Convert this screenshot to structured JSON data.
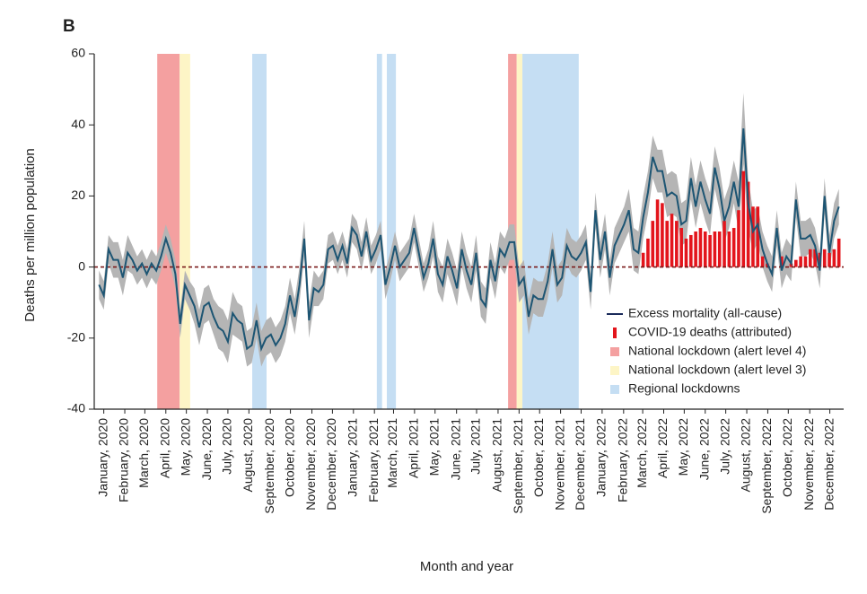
{
  "chart_data": {
    "type": "line",
    "panel_label": "B",
    "xlabel": "Month and year",
    "ylabel": "Deaths per million population",
    "xlim": [
      0,
      157
    ],
    "ylim": [
      -40,
      60
    ],
    "yticks": [
      -40,
      -20,
      0,
      20,
      40,
      60
    ],
    "xticks": [
      {
        "value": 2,
        "label": "January, 2020"
      },
      {
        "value": 6.4,
        "label": "February, 2020"
      },
      {
        "value": 10.6,
        "label": "March, 2020"
      },
      {
        "value": 15,
        "label": "April, 2020"
      },
      {
        "value": 19.3,
        "label": "May, 2020"
      },
      {
        "value": 23.7,
        "label": "June, 2020"
      },
      {
        "value": 28,
        "label": "July, 2020"
      },
      {
        "value": 32.4,
        "label": "August, 2020"
      },
      {
        "value": 36.9,
        "label": "September, 2020"
      },
      {
        "value": 41.1,
        "label": "October, 2020"
      },
      {
        "value": 45.6,
        "label": "November, 2020"
      },
      {
        "value": 49.9,
        "label": "December, 2020"
      },
      {
        "value": 54.3,
        "label": "January, 2021"
      },
      {
        "value": 58.7,
        "label": "February, 2021"
      },
      {
        "value": 62.7,
        "label": "March, 2021"
      },
      {
        "value": 67.1,
        "label": "April, 2021"
      },
      {
        "value": 71.4,
        "label": "May, 2021"
      },
      {
        "value": 75.9,
        "label": "June, 2021"
      },
      {
        "value": 80.1,
        "label": "July, 2021"
      },
      {
        "value": 84.6,
        "label": "August, 2021"
      },
      {
        "value": 89,
        "label": "September, 2021"
      },
      {
        "value": 93.3,
        "label": "October, 2021"
      },
      {
        "value": 97.7,
        "label": "November, 2021"
      },
      {
        "value": 102,
        "label": "December, 2021"
      },
      {
        "value": 106.4,
        "label": "January, 2022"
      },
      {
        "value": 110.9,
        "label": "February, 2022"
      },
      {
        "value": 114.9,
        "label": "March, 2022"
      },
      {
        "value": 119.3,
        "label": "April, 2022"
      },
      {
        "value": 123.6,
        "label": "May, 2022"
      },
      {
        "value": 128,
        "label": "June, 2022"
      },
      {
        "value": 132.3,
        "label": "July, 2022"
      },
      {
        "value": 136.7,
        "label": "August, 2022"
      },
      {
        "value": 141.1,
        "label": "September, 2022"
      },
      {
        "value": 145.4,
        "label": "October, 2022"
      },
      {
        "value": 149.9,
        "label": "November, 2022"
      },
      {
        "value": 154.1,
        "label": "December, 2022"
      }
    ],
    "hline": 0,
    "series": [
      {
        "name": "Excess mortality (all-cause)",
        "color": "#1d5573",
        "legend_color": "#1a2a5a",
        "band_color": "#b5b5b5",
        "x": [
          1,
          2,
          3,
          4,
          5,
          6,
          7,
          8,
          9,
          10,
          11,
          12,
          13,
          14,
          15,
          16,
          17,
          18,
          19,
          20,
          21,
          22,
          23,
          24,
          25,
          26,
          27,
          28,
          29,
          30,
          31,
          32,
          33,
          34,
          35,
          36,
          37,
          38,
          39,
          40,
          41,
          42,
          43,
          44,
          45,
          46,
          47,
          48,
          49,
          50,
          51,
          52,
          53,
          54,
          55,
          56,
          57,
          58,
          59,
          60,
          61,
          62,
          63,
          64,
          65,
          66,
          67,
          68,
          69,
          70,
          71,
          72,
          73,
          74,
          75,
          76,
          77,
          78,
          79,
          80,
          81,
          82,
          83,
          84,
          85,
          86,
          87,
          88,
          89,
          90,
          91,
          92,
          93,
          94,
          95,
          96,
          97,
          98,
          99,
          100,
          101,
          102,
          103,
          104,
          105,
          106,
          107,
          108,
          109,
          110,
          111,
          112,
          113,
          114,
          115,
          116,
          117,
          118,
          119,
          120,
          121,
          122,
          123,
          124,
          125,
          126,
          127,
          128,
          129,
          130,
          131,
          132,
          133,
          134,
          135,
          136,
          137,
          138,
          139,
          140,
          141,
          142,
          143,
          144,
          145,
          146,
          147,
          148,
          149,
          150,
          151,
          152,
          153,
          154,
          155,
          156
        ],
        "values": [
          -5,
          -8,
          5,
          2,
          2,
          -3,
          4,
          2,
          -1,
          1,
          -2,
          1,
          -1,
          3,
          8,
          4,
          -2,
          -16,
          -5,
          -8,
          -11,
          -17,
          -11,
          -10,
          -14,
          -17,
          -18,
          -21,
          -13,
          -15,
          -16,
          -23,
          -22,
          -15,
          -23,
          -20,
          -19,
          -22,
          -20,
          -16,
          -8,
          -14,
          -5,
          8,
          -15,
          -6,
          -7,
          -5,
          5,
          6,
          2,
          6,
          1,
          11,
          9,
          3,
          10,
          2,
          5,
          9,
          -5,
          0,
          6,
          0,
          2,
          4,
          11,
          4,
          -3,
          1,
          8,
          -2,
          -5,
          3,
          -1,
          -6,
          5,
          -1,
          -5,
          4,
          -9,
          -11,
          2,
          -4,
          5,
          3,
          7,
          7,
          -5,
          -3,
          -14,
          -8,
          -9,
          -9,
          -4,
          5,
          -5,
          -3,
          6,
          3,
          2,
          4,
          7,
          -7,
          16,
          2,
          10,
          -3,
          6,
          9,
          12,
          16,
          5,
          4,
          14,
          21,
          31,
          27,
          27,
          20,
          21,
          20,
          12,
          13,
          25,
          17,
          24,
          19,
          15,
          28,
          22,
          13,
          17,
          24,
          17,
          39,
          18,
          10,
          12,
          5,
          1,
          -2,
          11,
          -1,
          3,
          1,
          19,
          8,
          8,
          9,
          6,
          -1,
          20,
          4,
          13,
          17
        ],
        "error": [
          4,
          4,
          4,
          5,
          5,
          5,
          5,
          4,
          4,
          4,
          4,
          4,
          4,
          4,
          4,
          4,
          4,
          4,
          4,
          4,
          5,
          5,
          5,
          5,
          5,
          6,
          6,
          6,
          6,
          5,
          5,
          5,
          5,
          5,
          5,
          5,
          5,
          5,
          5,
          5,
          5,
          5,
          5,
          5,
          5,
          5,
          4,
          4,
          4,
          4,
          4,
          4,
          4,
          4,
          4,
          4,
          4,
          4,
          4,
          4,
          4,
          4,
          4,
          4,
          4,
          4,
          4,
          4,
          4,
          4,
          5,
          5,
          5,
          5,
          5,
          5,
          5,
          5,
          5,
          5,
          5,
          5,
          5,
          5,
          5,
          5,
          5,
          5,
          5,
          5,
          5,
          5,
          5,
          5,
          5,
          5,
          5,
          5,
          5,
          5,
          5,
          5,
          5,
          5,
          5,
          5,
          5,
          5,
          5,
          5,
          5,
          6,
          6,
          6,
          6,
          6,
          6,
          6,
          6,
          6,
          6,
          6,
          6,
          6,
          6,
          6,
          6,
          6,
          6,
          6,
          6,
          6,
          6,
          6,
          7,
          10,
          7,
          6,
          5,
          5,
          5,
          5,
          5,
          5,
          5,
          5,
          5,
          5,
          5,
          5,
          5,
          5,
          5,
          5,
          5,
          5
        ]
      },
      {
        "name": "COVID-19 deaths (attributed)",
        "type": "bar",
        "color": "#e3151c",
        "x": [
          115,
          116,
          117,
          118,
          119,
          120,
          121,
          122,
          123,
          124,
          125,
          126,
          127,
          128,
          129,
          130,
          131,
          132,
          133,
          134,
          135,
          136,
          137,
          138,
          139,
          140,
          141,
          142,
          143,
          144,
          145,
          146,
          147,
          148,
          149,
          150,
          151,
          152,
          153,
          154,
          155,
          156
        ],
        "values": [
          4,
          8,
          13,
          19,
          18,
          13,
          15,
          13,
          11,
          8,
          9,
          10,
          11,
          10,
          9,
          10,
          10,
          13,
          10,
          11,
          16,
          27,
          24,
          17,
          17,
          3,
          1,
          0,
          0,
          3,
          0,
          1,
          2,
          3,
          3,
          5,
          5,
          4,
          5,
          4,
          5,
          8
        ]
      }
    ],
    "shaded_regions": [
      {
        "name": "National lockdown (alert level 4)",
        "color": "#f4a0a0",
        "spans": [
          [
            13.2,
            17.9
          ],
          [
            86.7,
            88.5
          ]
        ]
      },
      {
        "name": "National lockdown (alert level 3)",
        "color": "#fdf5c6",
        "spans": [
          [
            17.9,
            20.1
          ],
          [
            88.5,
            89.7
          ]
        ]
      },
      {
        "name": "Regional lockdowns",
        "color": "#c5def3",
        "spans": [
          [
            33.1,
            36.1
          ],
          [
            59.2,
            60.3
          ],
          [
            61.3,
            63.2
          ],
          [
            89.7,
            101.5
          ]
        ]
      }
    ]
  }
}
